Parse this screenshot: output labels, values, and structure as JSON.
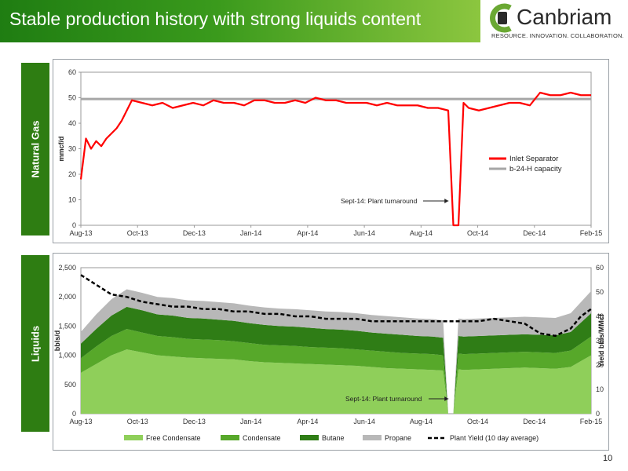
{
  "slide": {
    "title": "Stable production history with strong liquids content",
    "page_number": "10"
  },
  "logo": {
    "brand": "Canbriam",
    "tagline": "RESOURCE. INNOVATION. COLLABORATION.",
    "icon": "canbriam-c-icon",
    "colors": {
      "green": "#6aa833",
      "dark": "#2a2a2a"
    }
  },
  "colors": {
    "inlet_separator": "#ff0000",
    "capacity": "#a6a6a6",
    "free_condensate": "#8fcf5a",
    "condensate": "#57a82a",
    "butane": "#2f7d16",
    "propane": "#b8b8b8",
    "plant_yield": "#000000",
    "side_label": "#2e7d12"
  },
  "sides": {
    "gas": "Natural Gas",
    "liquids": "Liquids"
  },
  "chart_data": [
    {
      "type": "line",
      "ylabel": "mmcf/d",
      "ylim": [
        0,
        60
      ],
      "yticks": [
        "0",
        "10",
        "20",
        "30",
        "40",
        "50",
        "60"
      ],
      "xticks": [
        "Aug-13",
        "Oct-13",
        "Dec-13",
        "Jan-14",
        "Apr-14",
        "Jun-14",
        "Aug-14",
        "Oct-14",
        "Dec-14",
        "Feb-15"
      ],
      "legend": [
        "Inlet Separator",
        "b-24-H capacity"
      ],
      "legend_position": "right",
      "annotation": "Sept-14: Plant turnaround",
      "series": [
        {
          "name": "Inlet Separator",
          "x": [
            0.0,
            0.01,
            0.02,
            0.03,
            0.04,
            0.05,
            0.06,
            0.07,
            0.08,
            0.09,
            0.1,
            0.12,
            0.14,
            0.16,
            0.18,
            0.2,
            0.22,
            0.24,
            0.26,
            0.28,
            0.3,
            0.32,
            0.34,
            0.36,
            0.38,
            0.4,
            0.42,
            0.44,
            0.46,
            0.48,
            0.5,
            0.52,
            0.54,
            0.56,
            0.58,
            0.6,
            0.62,
            0.64,
            0.66,
            0.68,
            0.7,
            0.72,
            0.73,
            0.74,
            0.75,
            0.76,
            0.78,
            0.8,
            0.82,
            0.84,
            0.86,
            0.88,
            0.9,
            0.92,
            0.94,
            0.96,
            0.98,
            1.0
          ],
          "values": [
            18,
            34,
            30,
            33,
            31,
            34,
            36,
            38,
            41,
            45,
            49,
            48,
            47,
            48,
            46,
            47,
            48,
            47,
            49,
            48,
            48,
            47,
            49,
            49,
            48,
            48,
            49,
            48,
            50,
            49,
            49,
            48,
            48,
            48,
            47,
            48,
            47,
            47,
            47,
            46,
            46,
            45,
            0,
            0,
            48,
            46,
            45,
            46,
            47,
            48,
            48,
            47,
            52,
            51,
            51,
            52,
            51,
            51
          ]
        },
        {
          "name": "b-24-H capacity",
          "x": [
            0,
            1
          ],
          "values": [
            49.5,
            49.5
          ]
        }
      ]
    },
    {
      "type": "area",
      "ylabel": "bbls/d",
      "y2label": "Yield bbls/MMcf",
      "ylim": [
        0,
        2500
      ],
      "y2lim": [
        0,
        60
      ],
      "yticks": [
        "0",
        "500",
        "1,000",
        "1,500",
        "2,000",
        "2,500"
      ],
      "y2ticks": [
        "0",
        "10",
        "20",
        "30",
        "40",
        "50",
        "60"
      ],
      "xticks": [
        "Aug-13",
        "Oct-13",
        "Dec-13",
        "Jan-14",
        "Apr-14",
        "Jun-14",
        "Aug-14",
        "Oct-14",
        "Dec-14",
        "Feb-15"
      ],
      "legend": [
        "Free Condensate",
        "Condensate",
        "Butane",
        "Propane",
        "Plant Yield (10 day average)"
      ],
      "legend_position": "bottom",
      "annotation": "Sept-14: Plant turnaround",
      "x": [
        0.0,
        0.03,
        0.06,
        0.09,
        0.12,
        0.15,
        0.18,
        0.21,
        0.24,
        0.27,
        0.3,
        0.33,
        0.36,
        0.39,
        0.42,
        0.45,
        0.48,
        0.51,
        0.54,
        0.57,
        0.6,
        0.63,
        0.66,
        0.69,
        0.71,
        0.72,
        0.73,
        0.74,
        0.75,
        0.78,
        0.81,
        0.84,
        0.87,
        0.9,
        0.93,
        0.96,
        0.98,
        1.0
      ],
      "series": [
        {
          "name": "Free Condensate",
          "values": [
            700,
            850,
            1000,
            1100,
            1050,
            1000,
            980,
            960,
            950,
            940,
            930,
            900,
            880,
            870,
            860,
            850,
            840,
            830,
            820,
            800,
            780,
            770,
            760,
            750,
            740,
            0,
            0,
            760,
            750,
            760,
            770,
            780,
            790,
            780,
            770,
            800,
            900,
            1000
          ]
        },
        {
          "name": "Condensate",
          "values": [
            250,
            300,
            330,
            350,
            340,
            330,
            330,
            320,
            320,
            320,
            310,
            310,
            300,
            300,
            300,
            290,
            290,
            290,
            280,
            280,
            280,
            270,
            270,
            270,
            260,
            0,
            0,
            270,
            270,
            270,
            270,
            270,
            270,
            270,
            270,
            280,
            300,
            320
          ]
        },
        {
          "name": "Butane",
          "values": [
            250,
            300,
            350,
            380,
            380,
            370,
            370,
            360,
            360,
            350,
            350,
            340,
            340,
            330,
            330,
            330,
            320,
            320,
            320,
            310,
            310,
            310,
            300,
            300,
            300,
            0,
            0,
            300,
            300,
            300,
            300,
            300,
            300,
            300,
            300,
            320,
            360,
            400
          ]
        },
        {
          "name": "Propane",
          "values": [
            200,
            250,
            280,
            300,
            300,
            300,
            300,
            300,
            300,
            300,
            300,
            300,
            300,
            300,
            300,
            300,
            300,
            300,
            300,
            300,
            300,
            300,
            300,
            300,
            300,
            0,
            0,
            300,
            300,
            300,
            300,
            300,
            300,
            300,
            300,
            320,
            350,
            380
          ]
        },
        {
          "name": "Plant Yield (10 day average)",
          "values": [
            57,
            53,
            49,
            48,
            46,
            45,
            44,
            44,
            43,
            43,
            42,
            42,
            41,
            41,
            40,
            40,
            39,
            39,
            39,
            38,
            38,
            38,
            38,
            38,
            38,
            38,
            38,
            38,
            38,
            38,
            39,
            38,
            37,
            33,
            32,
            35,
            40,
            43
          ]
        }
      ]
    }
  ]
}
